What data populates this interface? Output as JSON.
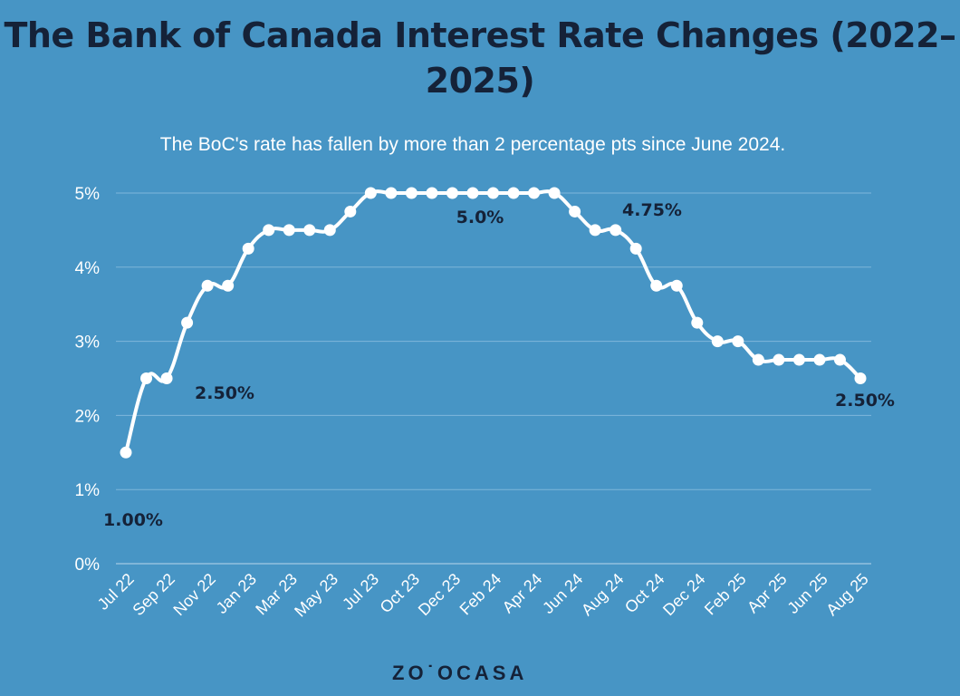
{
  "chart_data": {
    "type": "line",
    "title": "The Bank of Canada Interest Rate Changes (2022–2025)",
    "subtitle": "The BoC's rate has fallen by more than 2 percentage pts since June 2024.",
    "ylim": [
      0,
      5
    ],
    "yticks": [
      "0%",
      "1%",
      "2%",
      "3%",
      "4%",
      "5%"
    ],
    "xtick_labels": [
      "Jul 22",
      "Sep 22",
      "Nov 22",
      "Jan 23",
      "Mar 23",
      "May 23",
      "Jul 23",
      "Oct 23",
      "Dec 23",
      "Feb 24",
      "Apr 24",
      "Jun 24",
      "Aug 24",
      "Oct 24",
      "Dec 24",
      "Feb 25",
      "Apr 25",
      "Jun 25",
      "Aug 25"
    ],
    "grid": true,
    "line_color": "#ffffff",
    "values": [
      1.5,
      2.5,
      2.5,
      3.25,
      3.75,
      3.75,
      4.25,
      4.5,
      4.5,
      4.5,
      4.5,
      4.75,
      5,
      5,
      5,
      5,
      5,
      5,
      5,
      5,
      5,
      5,
      4.75,
      4.5,
      4.5,
      4.25,
      3.75,
      3.75,
      3.25,
      3.0,
      3.0,
      2.75,
      2.75,
      2.75,
      2.75,
      2.75,
      2.5
    ],
    "annotations": [
      "1.00%",
      "2.50%",
      "5.0%",
      "4.75%",
      "2.50%"
    ]
  },
  "logo": "ZOOCASA",
  "colors": {
    "background": "#4795c5",
    "title": "#152238",
    "annotation": "#152238"
  }
}
